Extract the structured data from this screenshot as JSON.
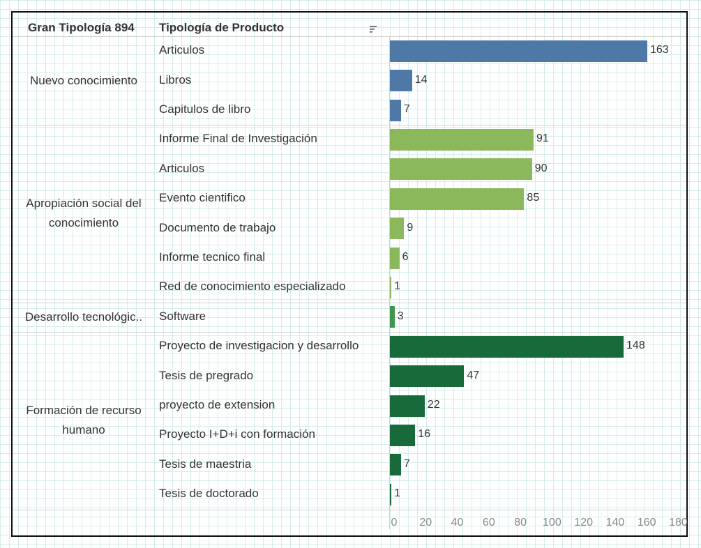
{
  "header": {
    "group_title": "Gran Tipología 894",
    "type_title": "Tipología de Producto"
  },
  "chart_data": {
    "type": "bar",
    "orientation": "horizontal",
    "xlim": [
      0,
      180
    ],
    "xticks": [
      0,
      20,
      40,
      60,
      80,
      100,
      120,
      140,
      160,
      180
    ],
    "groups": [
      {
        "name": "Nuevo conocimiento",
        "color": "#4e79a7",
        "items": [
          {
            "label": "Articulos",
            "value": 163
          },
          {
            "label": "Libros",
            "value": 14
          },
          {
            "label": "Capitulos de libro",
            "value": 7
          }
        ]
      },
      {
        "name": "Apropiación social del conocimiento",
        "color": "#8cb85c",
        "items": [
          {
            "label": "Informe Final de Investigación",
            "value": 91
          },
          {
            "label": "Articulos",
            "value": 90
          },
          {
            "label": "Evento cientifico",
            "value": 85
          },
          {
            "label": "Documento de trabajo",
            "value": 9
          },
          {
            "label": "Informe tecnico final",
            "value": 6
          },
          {
            "label": "Red de conocimiento especializado",
            "value": 1
          }
        ]
      },
      {
        "name": "Desarrollo tecnológic..",
        "color": "#3e9651",
        "items": [
          {
            "label": "Software",
            "value": 3
          }
        ]
      },
      {
        "name": "Formación de recurso humano",
        "color": "#186a3b",
        "items": [
          {
            "label": "Proyecto de investigacion y desarrollo",
            "value": 148
          },
          {
            "label": "Tesis de pregrado",
            "value": 47
          },
          {
            "label": "proyecto de extension",
            "value": 22
          },
          {
            "label": "Proyecto I+D+i con formación",
            "value": 16
          },
          {
            "label": "Tesis de maestria",
            "value": 7
          },
          {
            "label": "Tesis de doctorado",
            "value": 1
          }
        ]
      }
    ]
  }
}
